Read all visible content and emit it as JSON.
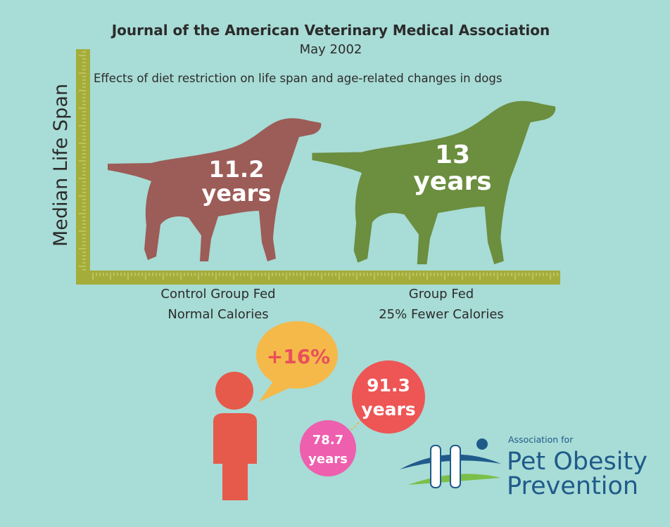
{
  "header": {
    "title": "Journal of the American Veterinary Medical Association",
    "subtitle": "May 2002"
  },
  "chart": {
    "y_label": "Median Life Span",
    "caption": "Effects of diet restriction on life span and age-related changes in dogs",
    "groups": [
      {
        "value": "11.2",
        "unit": "years",
        "label": [
          "Control Group Fed",
          "Normal Calories"
        ]
      },
      {
        "value": "13",
        "unit": "years",
        "label": [
          "Group Fed",
          "25% Fewer Calories"
        ]
      }
    ]
  },
  "comparison": {
    "change": "+16%",
    "high": {
      "value": "91.3",
      "unit": "years"
    },
    "low": {
      "value": "78.7",
      "unit": "years"
    }
  },
  "logo": {
    "pre": "Association for",
    "lines": [
      "Pet Obesity",
      "Prevention"
    ]
  }
}
